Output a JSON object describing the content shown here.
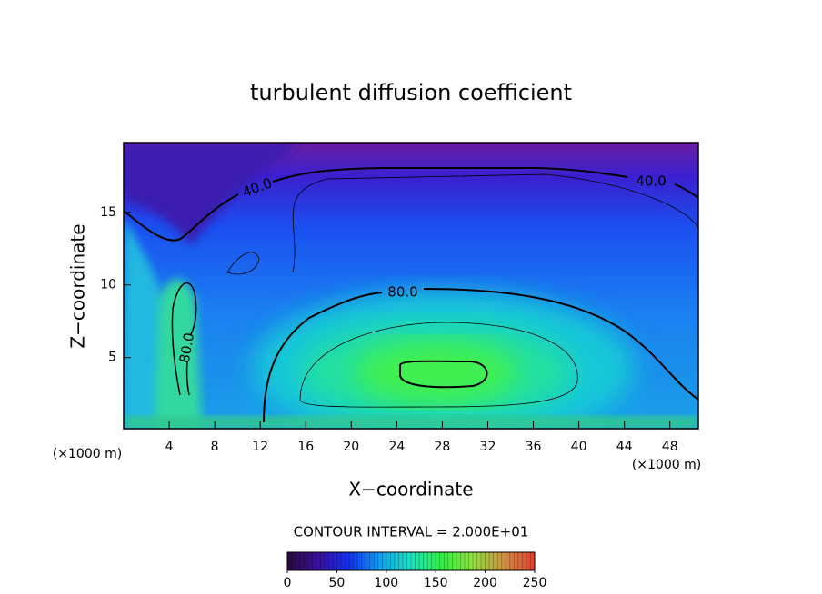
{
  "chart_data": {
    "type": "contour",
    "title": "turbulent diffusion coefficient",
    "x_label": "X−coordinate",
    "y_label": "Z−coordinate",
    "x_unit": "(×1000 m)",
    "y_unit": "(×1000 m)",
    "xlim": [
      0,
      50.5
    ],
    "xticks": [
      4,
      8,
      12,
      16,
      20,
      24,
      28,
      32,
      36,
      40,
      44,
      48
    ],
    "ylim": [
      0.1,
      19.8
    ],
    "yticks": [
      5,
      10,
      15
    ],
    "contours": [
      {
        "value": 40,
        "label": "40.0"
      },
      {
        "value": 40,
        "label": "40.0"
      },
      {
        "value": 80,
        "label": "80.0"
      },
      {
        "value": 80,
        "label": "80.0"
      },
      {
        "value": 120,
        "label": null
      },
      {
        "value": 100,
        "label": null
      },
      {
        "value": 60,
        "label": null
      }
    ],
    "contour_interval": "CONTOUR INTERVAL = 2.000E+01",
    "colorbar": {
      "lim": [
        0,
        250
      ],
      "ticks": [
        0,
        50,
        100,
        150,
        200,
        250
      ],
      "colors": [
        "#2a0a3a",
        "#3a10a0",
        "#1030f0",
        "#10a0f0",
        "#20e0c0",
        "#30f040",
        "#90e040",
        "#d09040",
        "#e04030"
      ]
    }
  }
}
